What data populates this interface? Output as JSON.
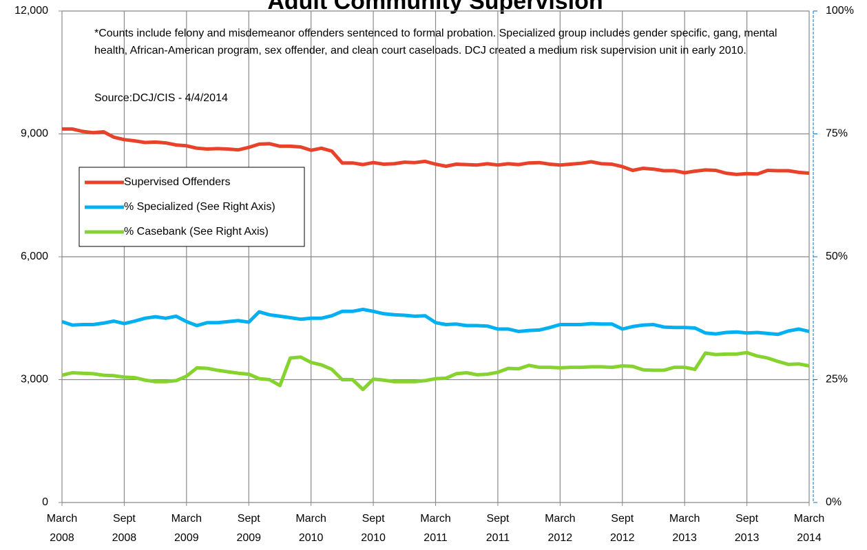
{
  "chart_data": {
    "type": "line",
    "title": "Adult Community Supervision",
    "annotations": [
      "*Counts include felony and misdemeanor offenders sentenced to formal probation.  Specialized group includes gender specific, gang, mental health, African-American program, sex offender, and clean court caseloads.  DCJ created a medium risk supervision unit in early 2010.",
      "Source:DCJ/CIS - 4/4/2014"
    ],
    "categories": [
      "March\n2008",
      null,
      null,
      null,
      null,
      null,
      "Sept\n2008",
      null,
      null,
      null,
      null,
      null,
      "March\n2009",
      null,
      null,
      null,
      null,
      null,
      "Sept\n2009",
      null,
      null,
      null,
      null,
      null,
      "March\n2010",
      null,
      null,
      null,
      null,
      null,
      "Sept\n2010",
      null,
      null,
      null,
      null,
      null,
      "March\n2011",
      null,
      null,
      null,
      null,
      null,
      "Sept\n2011",
      null,
      null,
      null,
      null,
      null,
      "March\n2012",
      null,
      null,
      null,
      null,
      null,
      "Sept\n2012",
      null,
      null,
      null,
      null,
      null,
      "March\n2013",
      null,
      null,
      null,
      null,
      null,
      "Sept\n2013",
      null,
      null,
      null,
      null,
      null,
      "March\n2014"
    ],
    "series": [
      {
        "name": "Supervised Offenders",
        "color": "#e8432a",
        "values": [
          9120,
          9120,
          9060,
          9030,
          9050,
          8920,
          8860,
          8830,
          8790,
          8800,
          8780,
          8730,
          8710,
          8650,
          8630,
          8640,
          8630,
          8610,
          8670,
          8750,
          8760,
          8700,
          8700,
          8680,
          8600,
          8650,
          8580,
          8290,
          8290,
          8250,
          8300,
          8260,
          8270,
          8310,
          8300,
          8330,
          8260,
          8210,
          8260,
          8250,
          8240,
          8270,
          8240,
          8270,
          8250,
          8290,
          8300,
          8260,
          8240,
          8260,
          8280,
          8320,
          8270,
          8260,
          8200,
          8110,
          8160,
          8140,
          8100,
          8100,
          8050,
          8090,
          8120,
          8110,
          8040,
          8010,
          8030,
          8020,
          8110,
          8100,
          8100,
          8060,
          8040
        ]
      },
      {
        "name": "% Specialized (See Right Axis)",
        "color": "#00b0f0",
        "axis": "y2",
        "values": [
          36.8,
          36.1,
          36.2,
          36.2,
          36.5,
          36.9,
          36.4,
          36.9,
          37.5,
          37.8,
          37.5,
          37.9,
          36.8,
          36.0,
          36.6,
          36.6,
          36.8,
          37.0,
          36.7,
          38.8,
          38.2,
          37.9,
          37.6,
          37.3,
          37.5,
          37.5,
          38.0,
          38.9,
          38.9,
          39.3,
          38.9,
          38.4,
          38.2,
          38.1,
          37.9,
          38.0,
          36.6,
          36.2,
          36.3,
          36.0,
          36.0,
          35.9,
          35.3,
          35.3,
          34.8,
          35.0,
          35.1,
          35.6,
          36.2,
          36.2,
          36.2,
          36.4,
          36.3,
          36.3,
          35.3,
          35.8,
          36.1,
          36.2,
          35.7,
          35.6,
          35.6,
          35.5,
          34.5,
          34.3,
          34.6,
          34.7,
          34.5,
          34.6,
          34.4,
          34.2,
          34.9,
          35.3,
          34.8
        ]
      },
      {
        "name": "% Casebank (See Right Axis)",
        "color": "#86d22e",
        "axis": "y2",
        "values": [
          25.9,
          26.4,
          26.3,
          26.2,
          25.9,
          25.8,
          25.5,
          25.4,
          24.9,
          24.6,
          24.6,
          24.8,
          25.7,
          27.4,
          27.3,
          26.9,
          26.6,
          26.3,
          26.1,
          25.2,
          25.0,
          23.8,
          29.4,
          29.6,
          28.5,
          28.0,
          27.1,
          25.0,
          25.0,
          23.0,
          25.1,
          24.9,
          24.6,
          24.6,
          24.6,
          24.8,
          25.2,
          25.3,
          26.2,
          26.4,
          26.0,
          26.1,
          26.5,
          27.3,
          27.2,
          27.9,
          27.5,
          27.5,
          27.4,
          27.5,
          27.5,
          27.6,
          27.6,
          27.5,
          27.8,
          27.7,
          27.0,
          26.9,
          26.9,
          27.5,
          27.5,
          27.1,
          30.4,
          30.1,
          30.2,
          30.2,
          30.5,
          29.8,
          29.4,
          28.7,
          28.1,
          28.2,
          27.8
        ]
      }
    ],
    "ylim": [
      0,
      12000
    ],
    "yticks": [
      {
        "value": 0,
        "label": "0"
      },
      {
        "value": 3000,
        "label": "3,000"
      },
      {
        "value": 6000,
        "label": "6,000"
      },
      {
        "value": 9000,
        "label": "9,000"
      },
      {
        "value": 12000,
        "label": "12,000"
      }
    ],
    "y2lim": [
      0,
      100
    ],
    "y2ticks": [
      {
        "value": 0,
        "label": "0%"
      },
      {
        "value": 25,
        "label": "25%"
      },
      {
        "value": 50,
        "label": "50%"
      },
      {
        "value": 75,
        "label": "75%"
      },
      {
        "value": 100,
        "label": "100%"
      }
    ],
    "y2color": "#0070c0",
    "grid": true,
    "legend": "left"
  }
}
